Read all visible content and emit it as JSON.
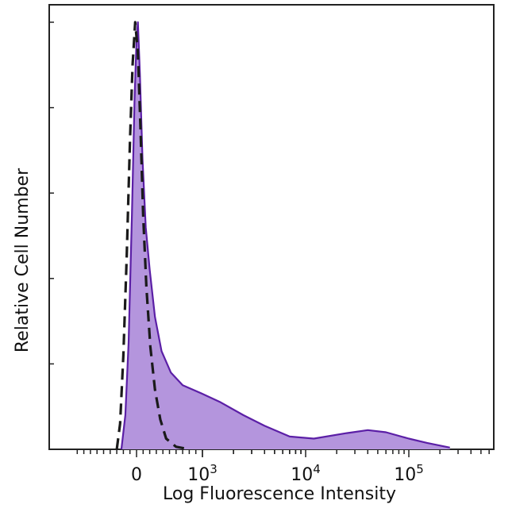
{
  "chart_data": {
    "type": "area",
    "xlabel": "Log Fluorescence Intensity",
    "ylabel": "Relative Cell Number",
    "x_scale": "biexponential",
    "ticks": [
      {
        "value": 0,
        "base": "0",
        "exp": ""
      },
      {
        "value": 1000,
        "base": "10",
        "exp": "3"
      },
      {
        "value": 10000,
        "base": "10",
        "exp": "4"
      },
      {
        "value": 100000,
        "base": "10",
        "exp": "5"
      }
    ],
    "ylim": [
      0,
      1
    ],
    "series": [
      {
        "style": "filled-purple",
        "fill_color": "#b495dd",
        "line_color": "#5b1fa6",
        "points": [
          [
            -230,
            0
          ],
          [
            -170,
            0.08
          ],
          [
            -120,
            0.25
          ],
          [
            -70,
            0.55
          ],
          [
            -30,
            0.82
          ],
          [
            0,
            0.96
          ],
          [
            20,
            1.0
          ],
          [
            50,
            0.88
          ],
          [
            90,
            0.68
          ],
          [
            140,
            0.52
          ],
          [
            200,
            0.42
          ],
          [
            280,
            0.31
          ],
          [
            380,
            0.23
          ],
          [
            520,
            0.18
          ],
          [
            700,
            0.15
          ],
          [
            1000,
            0.13
          ],
          [
            1500,
            0.11
          ],
          [
            2500,
            0.08
          ],
          [
            4000,
            0.055
          ],
          [
            7000,
            0.03
          ],
          [
            12000,
            0.025
          ],
          [
            25000,
            0.038
          ],
          [
            40000,
            0.045
          ],
          [
            60000,
            0.04
          ],
          [
            100000,
            0.025
          ],
          [
            150000,
            0.015
          ],
          [
            250000,
            0.004
          ]
        ]
      },
      {
        "style": "dashed-black",
        "line_color": "#1a1a1a",
        "points": [
          [
            -300,
            0
          ],
          [
            -250,
            0.06
          ],
          [
            -200,
            0.22
          ],
          [
            -150,
            0.45
          ],
          [
            -100,
            0.72
          ],
          [
            -60,
            0.9
          ],
          [
            -20,
            1.0
          ],
          [
            20,
            0.93
          ],
          [
            60,
            0.75
          ],
          [
            100,
            0.55
          ],
          [
            150,
            0.38
          ],
          [
            210,
            0.24
          ],
          [
            280,
            0.14
          ],
          [
            360,
            0.07
          ],
          [
            450,
            0.025
          ],
          [
            600,
            0.006
          ],
          [
            800,
            0
          ]
        ]
      }
    ]
  }
}
